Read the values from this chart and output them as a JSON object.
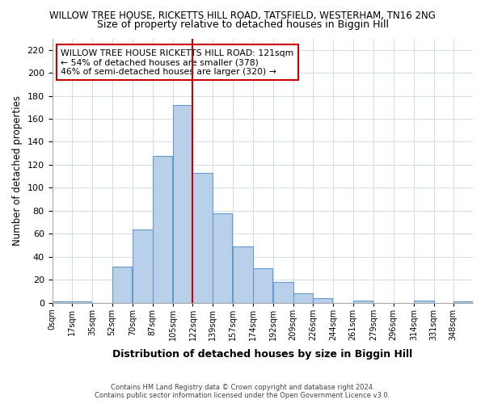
{
  "title1": "WILLOW TREE HOUSE, RICKETTS HILL ROAD, TATSFIELD, WESTERHAM, TN16 2NG",
  "title2": "Size of property relative to detached houses in Biggin Hill",
  "xlabel": "Distribution of detached houses by size in Biggin Hill",
  "ylabel": "Number of detached properties",
  "bin_labels": [
    "0sqm",
    "17sqm",
    "35sqm",
    "52sqm",
    "70sqm",
    "87sqm",
    "105sqm",
    "122sqm",
    "139sqm",
    "157sqm",
    "174sqm",
    "192sqm",
    "209sqm",
    "226sqm",
    "244sqm",
    "261sqm",
    "279sqm",
    "296sqm",
    "314sqm",
    "331sqm",
    "348sqm"
  ],
  "bin_edges": [
    0,
    17,
    35,
    52,
    70,
    87,
    105,
    122,
    139,
    157,
    174,
    192,
    209,
    226,
    244,
    261,
    279,
    296,
    314,
    331,
    348
  ],
  "bar_heights": [
    1,
    1,
    0,
    31,
    64,
    128,
    172,
    113,
    78,
    49,
    30,
    18,
    8,
    4,
    0,
    2,
    0,
    0,
    2,
    0,
    1
  ],
  "bar_color": "#b8d0ea",
  "bar_edge_color": "#6699cc",
  "grid_color": "#d0dcea",
  "vline_x": 122,
  "vline_color": "#cc0000",
  "annotation_text": "WILLOW TREE HOUSE RICKETTS HILL ROAD: 121sqm\n← 54% of detached houses are smaller (378)\n46% of semi-detached houses are larger (320) →",
  "annotation_box_color": "white",
  "annotation_box_edge": "#cc0000",
  "ylim": [
    0,
    230
  ],
  "yticks": [
    0,
    20,
    40,
    60,
    80,
    100,
    120,
    140,
    160,
    180,
    200,
    220
  ],
  "footer1": "Contains HM Land Registry data © Crown copyright and database right 2024.",
  "footer2": "Contains public sector information licensed under the Open Government Licence v3.0.",
  "bg_color": "#ffffff",
  "plot_bg_color": "#ffffff"
}
